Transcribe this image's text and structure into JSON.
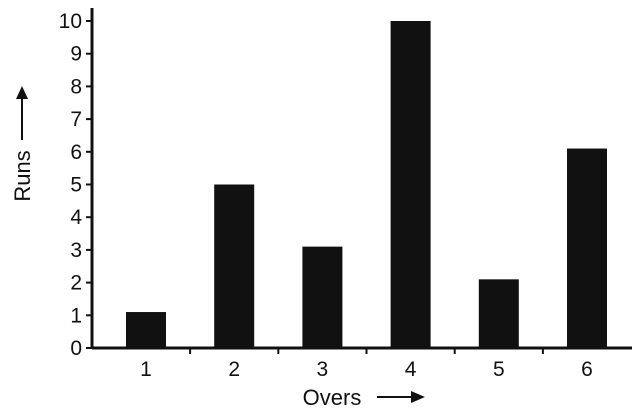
{
  "chart_data": {
    "type": "bar",
    "categories": [
      "1",
      "2",
      "3",
      "4",
      "5",
      "6"
    ],
    "values": [
      1.1,
      5.0,
      3.1,
      10.0,
      2.1,
      6.1
    ],
    "xlabel": "Overs",
    "ylabel": "Runs",
    "ylim": [
      0,
      10
    ],
    "yticks": [
      "0",
      "1",
      "2",
      "3",
      "4",
      "5",
      "6",
      "7",
      "8",
      "9",
      "10"
    ],
    "grid": false,
    "bar_color": "#111111"
  }
}
